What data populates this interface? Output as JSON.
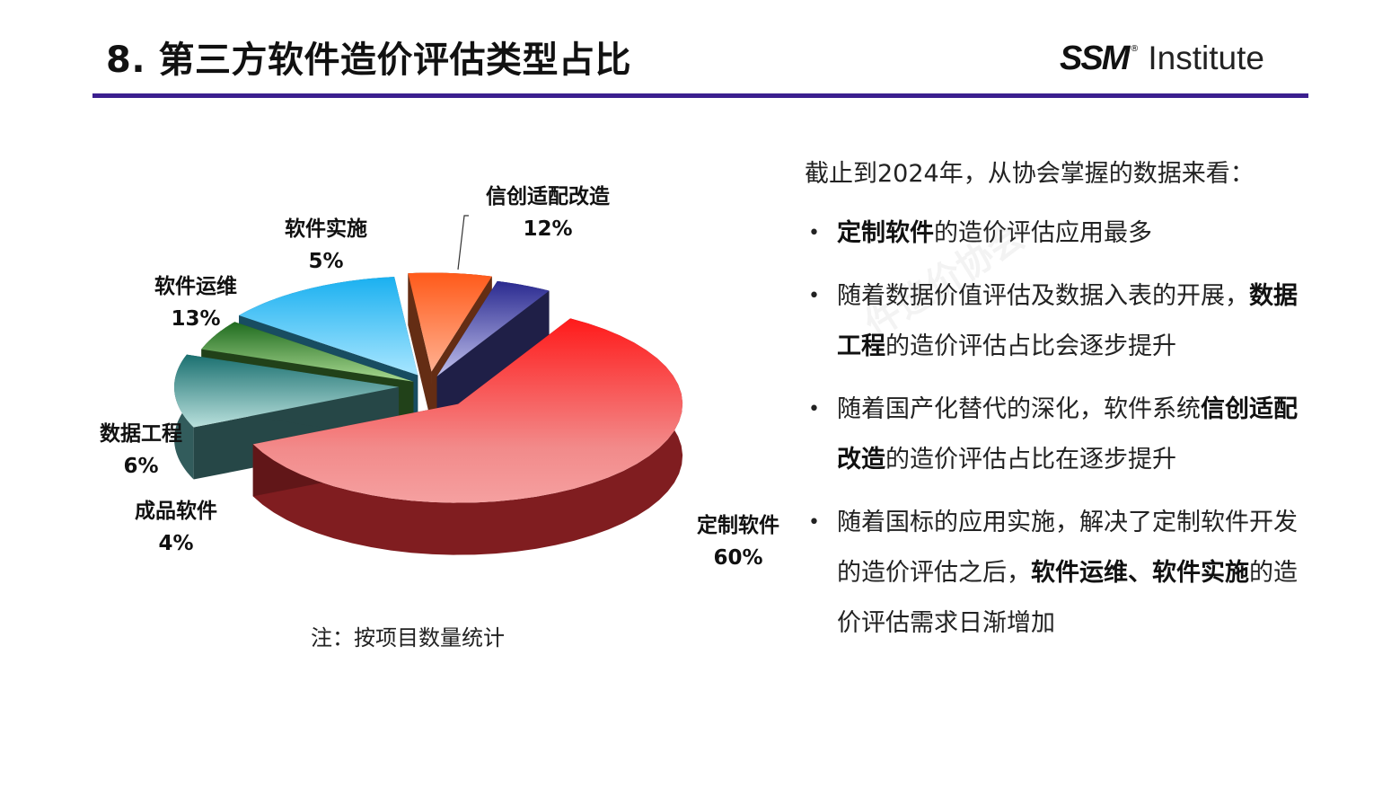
{
  "header": {
    "title": "8. 第三方软件造价评估类型占比",
    "logo_mark": "SSM",
    "logo_reg": "®",
    "logo_text": "Institute"
  },
  "watermark": "件造价协会",
  "note": "注：按项目数量统计",
  "panel": {
    "intro": "截止到2024年，从协会掌握的数据来看：",
    "bullets": [
      {
        "bold1": "定制软件",
        "text1": "的造价评估应用最多",
        "bold2": "",
        "text2": ""
      },
      {
        "bold1": "",
        "text1": "随着数据价值评估及数据入表的开展，",
        "bold2": "数据工程",
        "text2": "的造价评估占比会逐步提升"
      },
      {
        "bold1": "",
        "text1": "随着国产化替代的深化，软件系统",
        "bold2": "信创适配改造",
        "text2": "的造价评估占比在逐步提升"
      },
      {
        "bold1": "",
        "text1": "随着国标的应用实施，解决了定制软件开发的造价评估之后，",
        "bold2": "软件运维、软件实施",
        "text2": "的造价评估需求日渐增加"
      }
    ]
  },
  "chart_data": {
    "type": "pie",
    "title": "",
    "categories": [
      "定制软件",
      "信创适配改造",
      "软件实施",
      "软件运维",
      "数据工程",
      "成品软件"
    ],
    "values": [
      60,
      12,
      5,
      13,
      6,
      4
    ],
    "labels": [
      "60%",
      "12%",
      "5%",
      "13%",
      "6%",
      "4%"
    ],
    "colors": [
      "#e8343a",
      "#5aa8a8",
      "#4f9a3c",
      "#3ab8e8",
      "#ee6a30",
      "#4a4aa8"
    ],
    "three_d": true
  }
}
